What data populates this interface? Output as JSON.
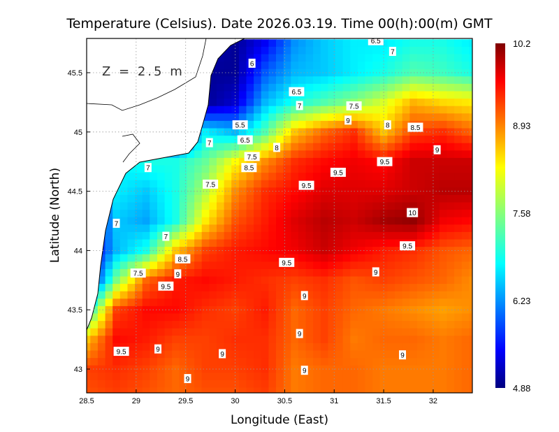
{
  "chart_data": {
    "type": "heatmap",
    "title": "Temperature (Celsius). Date 2026.03.19. Time 00(h):00(m) GMT",
    "xlabel": "Longitude (East)",
    "ylabel": "Latitude (North)",
    "annotation": "Z = 2.5 m",
    "xlim": [
      28.5,
      32.4
    ],
    "ylim": [
      42.8,
      45.79
    ],
    "grid": true,
    "x_ticks": [
      "28.5",
      "29",
      "29.5",
      "30",
      "30.5",
      "31",
      "31.5",
      "32"
    ],
    "x_tick_values": [
      28.5,
      29,
      29.5,
      30,
      30.5,
      31,
      31.5,
      32
    ],
    "y_ticks": [
      "43",
      "43.5",
      "44",
      "44.5",
      "45",
      "45.5"
    ],
    "y_tick_values": [
      43,
      43.5,
      44,
      44.5,
      45,
      45.5
    ],
    "colorbar": {
      "min": 4.88,
      "max": 10.2,
      "labels": [
        "10.2",
        "8.93",
        "7.58",
        "6.23",
        "4.88"
      ],
      "label_values": [
        10.2,
        8.93,
        7.58,
        6.23,
        4.88
      ],
      "colormap": "jet"
    },
    "grid_lons": [
      28.5,
      28.8,
      29.1,
      29.4,
      29.7,
      30.0,
      30.3,
      30.6,
      30.9,
      31.2,
      31.5,
      31.8,
      32.1,
      32.4
    ],
    "grid_lats": [
      45.75,
      45.5,
      45.25,
      45.0,
      44.75,
      44.5,
      44.25,
      44.0,
      43.75,
      43.5,
      43.25,
      43.0,
      42.75
    ],
    "values": [
      [
        null,
        null,
        null,
        null,
        null,
        5.0,
        5.5,
        6.3,
        6.6,
        6.8,
        6.8,
        7.0,
        7.0,
        6.8
      ],
      [
        null,
        null,
        null,
        null,
        5.0,
        5.0,
        6.0,
        6.5,
        6.6,
        6.8,
        7.0,
        7.3,
        7.2,
        7.0
      ],
      [
        null,
        null,
        null,
        null,
        5.0,
        5.3,
        6.5,
        7.0,
        7.3,
        7.6,
        8.0,
        8.6,
        8.4,
        8.3
      ],
      [
        null,
        null,
        null,
        null,
        6.8,
        6.5,
        7.3,
        8.5,
        9.0,
        9.3,
        8.5,
        9.2,
        9.3,
        9.0
      ],
      [
        null,
        6.8,
        7.0,
        7.0,
        7.4,
        8.2,
        8.8,
        9.3,
        9.5,
        9.6,
        9.5,
        9.8,
        9.8,
        9.8
      ],
      [
        null,
        6.8,
        6.6,
        7.0,
        7.8,
        8.8,
        9.3,
        9.5,
        9.7,
        9.7,
        9.7,
        9.8,
        9.9,
        9.9
      ],
      [
        null,
        6.6,
        6.4,
        7.0,
        8.3,
        9.1,
        9.4,
        9.7,
        9.9,
        9.8,
        10.0,
        10.1,
        9.6,
        9.5
      ],
      [
        null,
        6.5,
        7.0,
        8.5,
        9.2,
        9.4,
        9.5,
        9.6,
        9.8,
        9.6,
        9.4,
        9.3,
        9.1,
        9.0
      ],
      [
        null,
        7.5,
        9.0,
        9.4,
        9.5,
        9.4,
        9.3,
        9.2,
        9.3,
        9.1,
        9.2,
        9.1,
        9.0,
        8.8
      ],
      [
        6.8,
        9.2,
        9.5,
        9.5,
        9.3,
        9.2,
        9.4,
        9.0,
        9.2,
        9.0,
        8.9,
        8.8,
        8.7,
        8.8
      ],
      [
        8.5,
        9.5,
        9.4,
        9.2,
        9.2,
        9.3,
        9.3,
        9.0,
        9.2,
        8.9,
        9.0,
        9.0,
        8.9,
        9.0
      ],
      [
        9.2,
        9.3,
        9.2,
        9.0,
        9.2,
        9.2,
        9.3,
        8.9,
        9.0,
        9.0,
        8.9,
        8.9,
        8.9,
        9.0
      ],
      [
        9.1,
        9.2,
        9.1,
        9.0,
        9.1,
        9.1,
        9.2,
        8.9,
        9.0,
        9.0,
        8.9,
        8.9,
        8.9,
        9.0
      ]
    ],
    "contour_labels": [
      {
        "text": "6",
        "lon": 30.17,
        "lat": 45.58
      },
      {
        "text": "6.5",
        "lon": 31.42,
        "lat": 45.77
      },
      {
        "text": "6.5",
        "lon": 30.62,
        "lat": 45.34
      },
      {
        "text": "7",
        "lon": 31.59,
        "lat": 45.68
      },
      {
        "text": "7",
        "lon": 30.65,
        "lat": 45.3
      },
      {
        "text": "7.5",
        "lon": 31.2,
        "lat": 45.22
      },
      {
        "text": "5.5",
        "lon": 30.05,
        "lat": 45.06
      },
      {
        "text": "6.5",
        "lon": 30.1,
        "lat": 45.01
      },
      {
        "text": "9",
        "lon": 31.14,
        "lat": 45.1
      },
      {
        "text": "8",
        "lon": 31.54,
        "lat": 45.06
      },
      {
        "text": "8.5",
        "lon": 31.82,
        "lat": 45.04
      },
      {
        "text": "7",
        "lon": 29.74,
        "lat": 44.91
      },
      {
        "text": "7.5",
        "lon": 30.17,
        "lat": 44.87
      },
      {
        "text": "8",
        "lon": 30.42,
        "lat": 44.87
      },
      {
        "text": "9",
        "lon": 32.04,
        "lat": 44.85
      },
      {
        "text": "9.5",
        "lon": 31.51,
        "lat": 44.75
      },
      {
        "text": "7",
        "lon": 29.12,
        "lat": 44.7
      },
      {
        "text": "8.5",
        "lon": 30.14,
        "lat": 44.7
      },
      {
        "text": "9.5",
        "lon": 31.04,
        "lat": 44.66
      },
      {
        "text": "7.5",
        "lon": 29.75,
        "lat": 44.56
      },
      {
        "text": "9.5",
        "lon": 30.72,
        "lat": 44.55
      },
      {
        "text": "10",
        "lon": 31.79,
        "lat": 44.32
      },
      {
        "text": "7",
        "lon": 28.8,
        "lat": 44.23
      },
      {
        "text": "7",
        "lon": 29.3,
        "lat": 44.12
      },
      {
        "text": "9.5",
        "lon": 31.74,
        "lat": 44.04
      },
      {
        "text": "8.5",
        "lon": 29.47,
        "lat": 43.93
      },
      {
        "text": "9",
        "lon": 29.42,
        "lat": 43.88
      },
      {
        "text": "9.5",
        "lon": 30.52,
        "lat": 43.9
      },
      {
        "text": "7.5",
        "lon": 29.02,
        "lat": 43.81
      },
      {
        "text": "9",
        "lon": 31.42,
        "lat": 43.82
      },
      {
        "text": "9.5",
        "lon": 29.3,
        "lat": 43.7
      },
      {
        "text": "9",
        "lon": 30.7,
        "lat": 43.62
      },
      {
        "text": "9",
        "lon": 30.65,
        "lat": 43.3
      },
      {
        "text": "9.5",
        "lon": 28.85,
        "lat": 43.15
      },
      {
        "text": "9",
        "lon": 29.22,
        "lat": 43.17
      },
      {
        "text": "9",
        "lon": 29.87,
        "lat": 43.13
      },
      {
        "text": "9",
        "lon": 31.69,
        "lat": 43.12
      },
      {
        "text": "9",
        "lon": 30.7,
        "lat": 42.99
      },
      {
        "text": "9",
        "lon": 29.52,
        "lat": 42.92
      }
    ]
  }
}
